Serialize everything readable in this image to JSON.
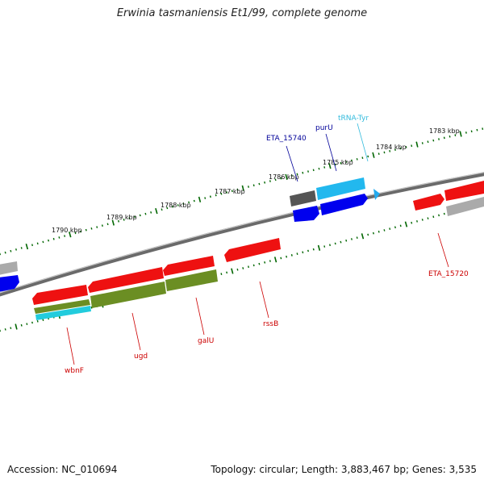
{
  "title": "Erwinia tasmaniensis Et1/99, complete genome",
  "footer": {
    "accession": "Accession: NC_010694",
    "summary": "Topology: circular; Length: 3,883,467 bp; Genes: 3,535"
  },
  "scale_labels": [
    "1790 kbp",
    "1789 kbp",
    "1788 kbp",
    "1787 kbp",
    "1786 kbp",
    "1785 kbp",
    "1784 kbp",
    "1783 kbp"
  ],
  "gene_labels": [
    {
      "id": "wbnF",
      "text": "wbnF",
      "color": "#cc0000"
    },
    {
      "id": "ugd",
      "text": "ugd",
      "color": "#cc0000"
    },
    {
      "id": "galU",
      "text": "galU",
      "color": "#cc0000"
    },
    {
      "id": "rssB",
      "text": "rssB",
      "color": "#cc0000"
    },
    {
      "id": "ETA_15720",
      "text": "ETA_15720",
      "color": "#cc0000"
    },
    {
      "id": "ETA_15740",
      "text": "ETA_15740",
      "color": "#000099"
    },
    {
      "id": "purU",
      "text": "purU",
      "color": "#000099"
    },
    {
      "id": "tRNA-Tyr",
      "text": "tRNA-Tyr",
      "color": "#33bbdd"
    }
  ],
  "colors": {
    "cds": "#ee1111",
    "gene": "#0000ee",
    "trna": "#22aaee",
    "misc": "#777777",
    "rna_green": "#6b8e23",
    "ticks": "#006600"
  }
}
